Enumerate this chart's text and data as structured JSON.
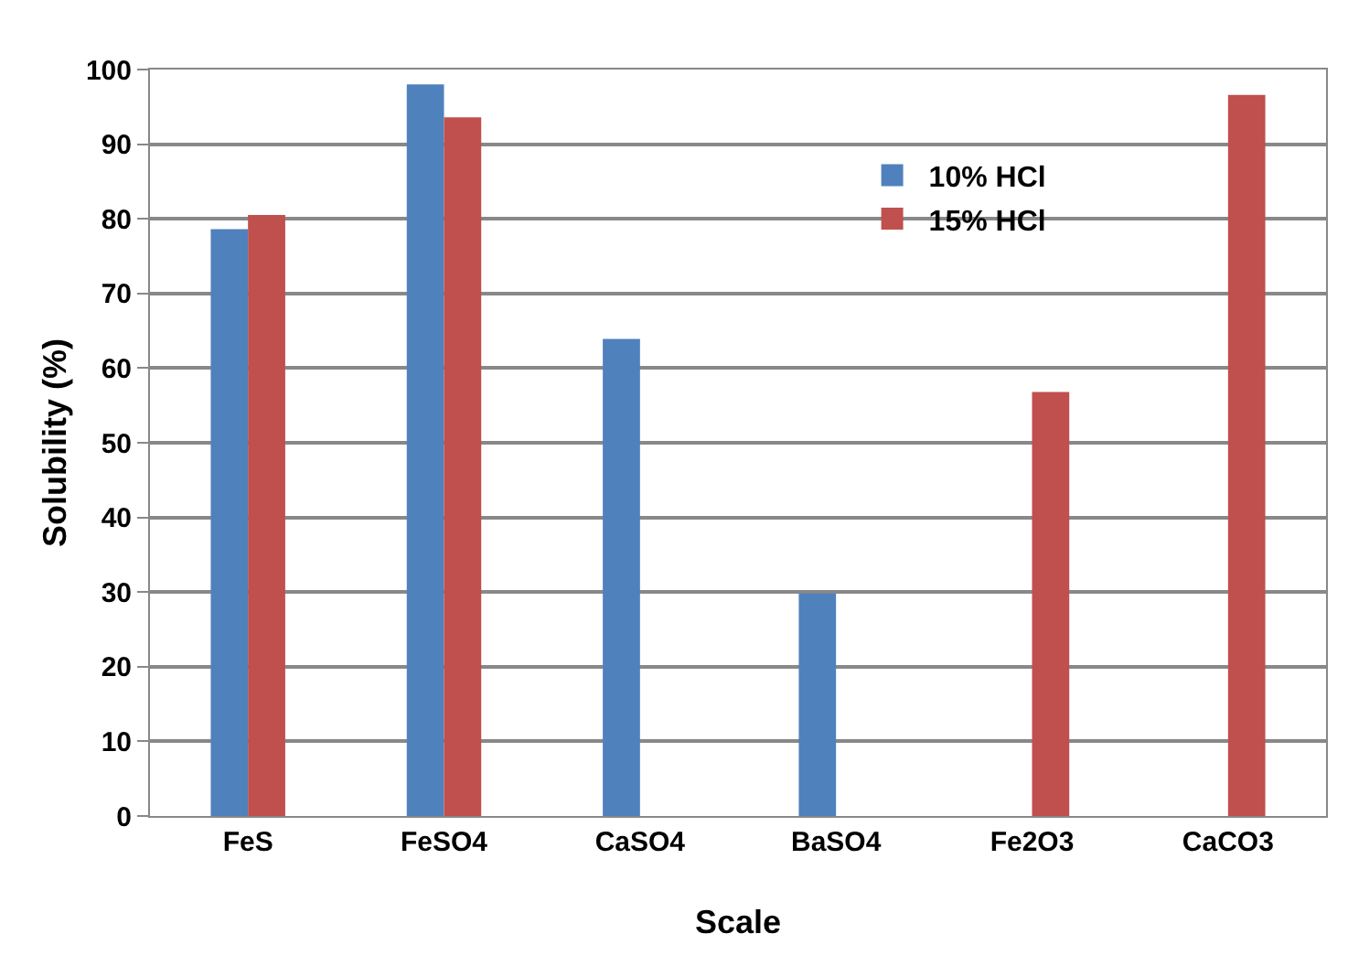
{
  "chart_data": {
    "type": "bar",
    "xlabel": "Scale",
    "ylabel": "Solubility (%)",
    "categories": [
      "FeS",
      "FeSO4",
      "CaSO4",
      "BaSO4",
      "Fe2O3",
      "CaCO3"
    ],
    "series": [
      {
        "name": "10% HCl",
        "color": "#4f81bd",
        "values": [
          78.6,
          98,
          63.9,
          29.8,
          null,
          null
        ]
      },
      {
        "name": "15% HCl",
        "color": "#c0504d",
        "values": [
          80.5,
          93.6,
          null,
          null,
          56.8,
          96.6
        ]
      }
    ],
    "ylim": [
      0,
      100
    ],
    "yticks": [
      0,
      10,
      20,
      30,
      40,
      50,
      60,
      70,
      80,
      90,
      100
    ],
    "grid": "y",
    "legend": "top right"
  }
}
